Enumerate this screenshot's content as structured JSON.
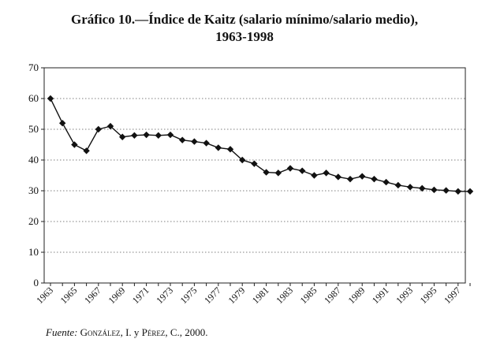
{
  "title_line1": "Gráfico 10.—Índice de Kaitz (salario mínimo/salario medio),",
  "title_line2": "1963-1998",
  "source": {
    "label": "Fuente:",
    "authors_1": "González",
    "between_1": ", I. y ",
    "authors_2": "Pérez",
    "tail": ", C., 2000."
  },
  "chart_data": {
    "type": "line",
    "title": "Gráfico 10.—Índice de Kaitz (salario mínimo/salario medio), 1963-1998",
    "xlabel": "",
    "ylabel": "",
    "ylim": [
      0,
      70
    ],
    "xlim": [
      1963,
      1998
    ],
    "grid": true,
    "marker": "diamond",
    "line_color": "#111111",
    "y_ticks": [
      "0",
      "10",
      "20",
      "30",
      "40",
      "50",
      "60",
      "70"
    ],
    "x_tick_labels": [
      "1963",
      "1965",
      "1967",
      "1969",
      "1971",
      "1973",
      "1975",
      "1977",
      "1979",
      "1981",
      "1983",
      "1985",
      "1987",
      "1989",
      "1991",
      "1993",
      "1995",
      "1997"
    ],
    "x": [
      1963,
      1964,
      1965,
      1966,
      1967,
      1968,
      1969,
      1970,
      1971,
      1972,
      1973,
      1974,
      1975,
      1976,
      1977,
      1978,
      1979,
      1980,
      1981,
      1982,
      1983,
      1984,
      1985,
      1986,
      1987,
      1988,
      1989,
      1990,
      1991,
      1992,
      1993,
      1994,
      1995,
      1996,
      1997,
      1998
    ],
    "values": [
      60,
      52,
      45,
      43,
      50,
      51,
      47.5,
      48,
      48.2,
      48,
      48.2,
      46.5,
      46,
      45.5,
      44,
      43.5,
      40,
      38.8,
      36,
      35.8,
      37.3,
      36.5,
      35,
      35.8,
      34.5,
      33.8,
      34.7,
      33.8,
      32.8,
      31.8,
      31.2,
      30.8,
      30.3,
      30.1,
      29.8,
      29.8
    ]
  }
}
